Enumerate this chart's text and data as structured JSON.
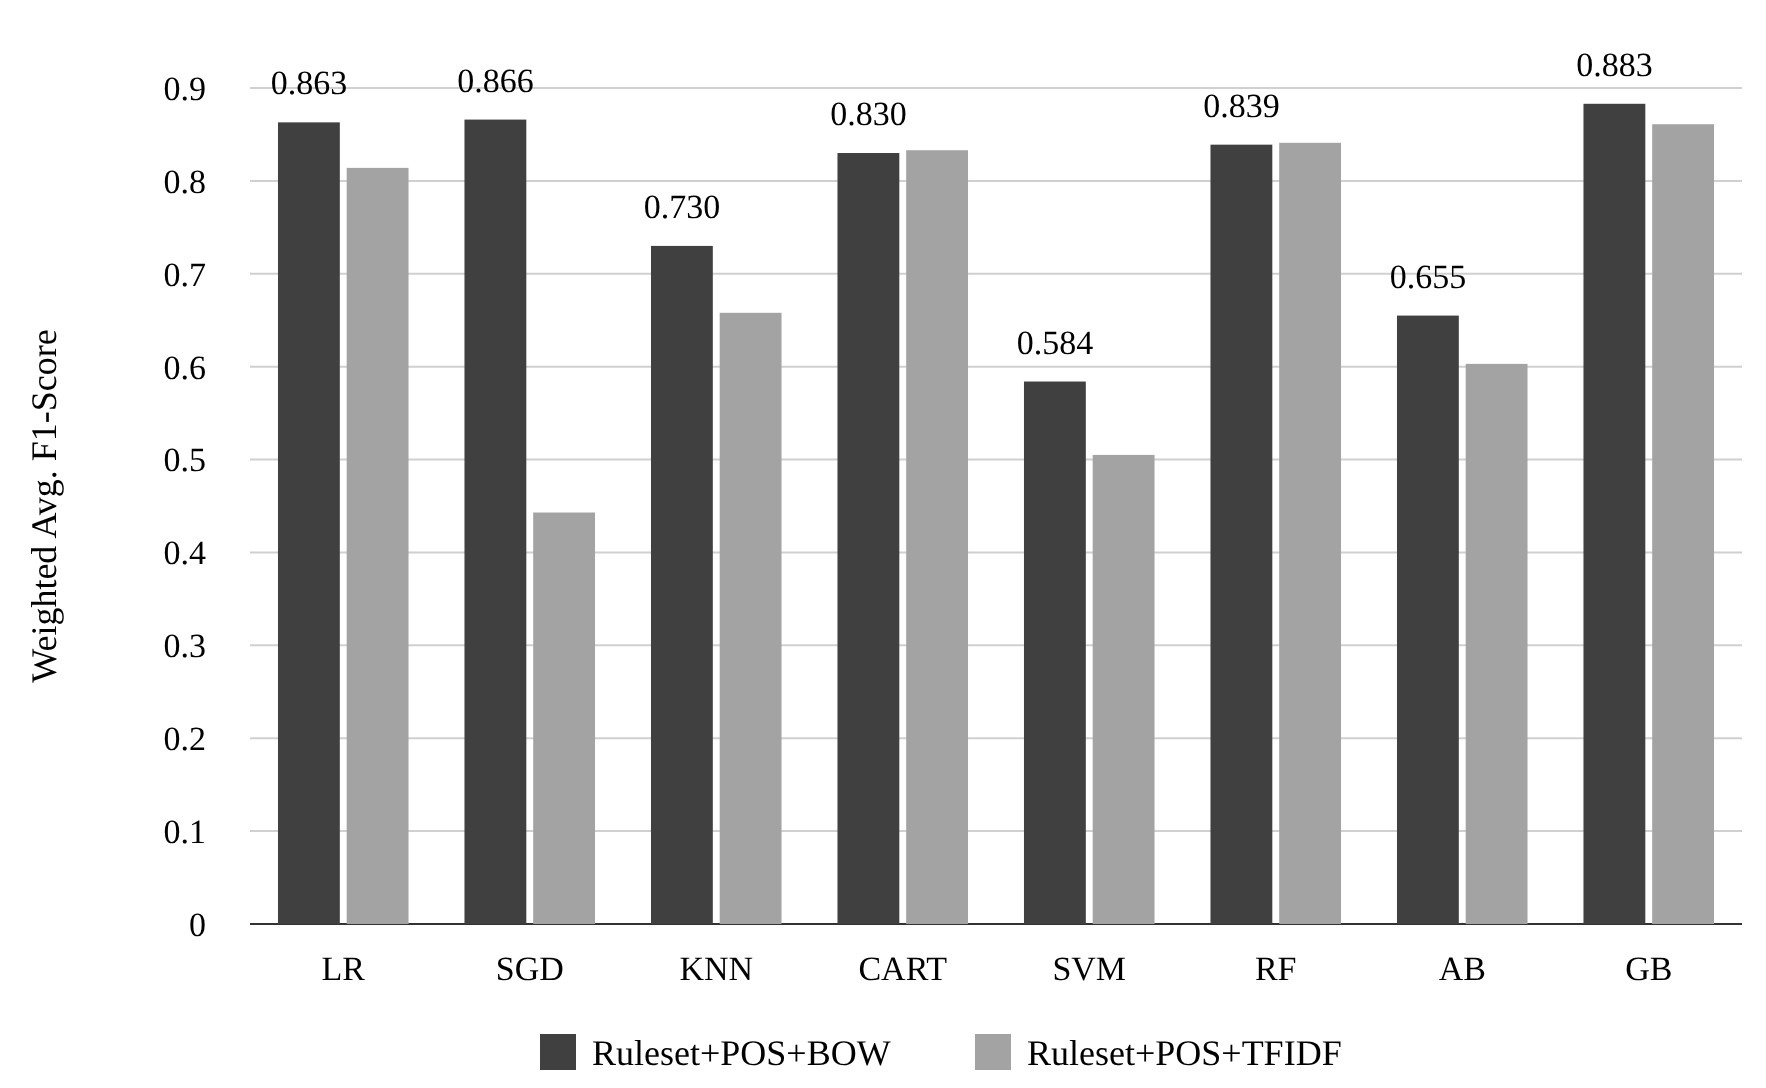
{
  "chart_data": {
    "type": "bar",
    "ylabel": "Weighted Avg. F1-Score",
    "categories": [
      "LR",
      "SGD",
      "KNN",
      "CART",
      "SVM",
      "RF",
      "AB",
      "GB"
    ],
    "series": [
      {
        "name": "Ruleset+POS+BOW",
        "color": "#404040",
        "values": [
          0.863,
          0.866,
          0.73,
          0.83,
          0.584,
          0.839,
          0.655,
          0.883
        ],
        "value_labels": [
          "0.863",
          "0.866",
          "0.730",
          "0.830",
          "0.584",
          "0.839",
          "0.655",
          "0.883"
        ]
      },
      {
        "name": "Ruleset+POS+TFIDF",
        "color": "#a3a3a3",
        "values": [
          0.814,
          0.443,
          0.658,
          0.833,
          0.505,
          0.841,
          0.603,
          0.861
        ]
      }
    ],
    "ylim": [
      0,
      0.9
    ],
    "yticks": [
      0,
      0.1,
      0.2,
      0.3,
      0.4,
      0.5,
      0.6,
      0.7,
      0.8,
      0.9
    ],
    "grid": "y",
    "legend": "bottom"
  }
}
